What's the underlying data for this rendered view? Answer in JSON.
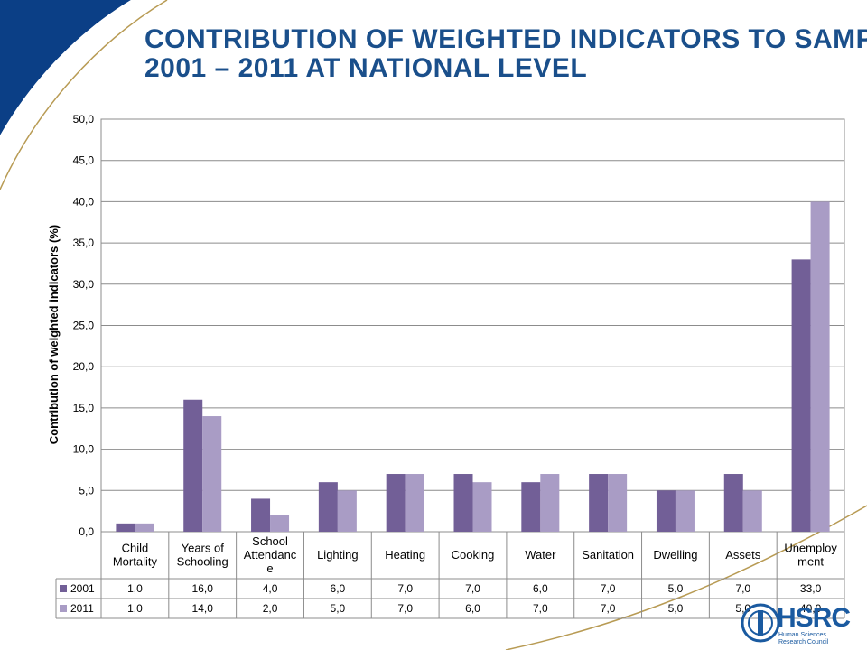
{
  "slide": {
    "title_line1": "Contribution of weighted indicators to SAMPI",
    "title_line2": "2001 – 2011 at national level"
  },
  "logo": {
    "name": "HSRC",
    "subtitle_line1": "Human Sciences",
    "subtitle_line2": "Research Council"
  },
  "colors": {
    "title": "#1a4f8b",
    "series_2001": "#725f97",
    "series_2011": "#a99cc5",
    "brand_blue": "#0b3f86",
    "gold_line": "#b89b54"
  },
  "chart_data": {
    "type": "bar",
    "title": "",
    "xlabel": "",
    "ylabel": "Contribution of weighted indicators (%)",
    "ylim": [
      0,
      50
    ],
    "yticks": [
      "0,0",
      "5,0",
      "10,0",
      "15,0",
      "20,0",
      "25,0",
      "30,0",
      "35,0",
      "40,0",
      "45,0",
      "50,0"
    ],
    "grid": true,
    "legend": "data-table",
    "categories": [
      [
        "Child",
        "Mortality"
      ],
      [
        "Years of",
        "Schooling"
      ],
      [
        "School",
        "Attendanc",
        "e"
      ],
      [
        "Lighting"
      ],
      [
        "Heating"
      ],
      [
        "Cooking"
      ],
      [
        "Water"
      ],
      [
        "Sanitation"
      ],
      [
        "Dwelling"
      ],
      [
        "Assets"
      ],
      [
        "Unemploy",
        "ment"
      ]
    ],
    "series": [
      {
        "name": "2001",
        "color": "#725f97",
        "values": [
          1,
          16,
          4,
          6,
          7,
          7,
          6,
          7,
          5,
          7,
          33
        ],
        "labels": [
          "1,0",
          "16,0",
          "4,0",
          "6,0",
          "7,0",
          "7,0",
          "6,0",
          "7,0",
          "5,0",
          "7,0",
          "33,0"
        ]
      },
      {
        "name": "2011",
        "color": "#a99cc5",
        "values": [
          1,
          14,
          2,
          5,
          7,
          6,
          7,
          7,
          5,
          5,
          40
        ],
        "labels": [
          "1,0",
          "14,0",
          "2,0",
          "5,0",
          "7,0",
          "6,0",
          "7,0",
          "7,0",
          "5,0",
          "5,0",
          "40,0"
        ]
      }
    ]
  }
}
